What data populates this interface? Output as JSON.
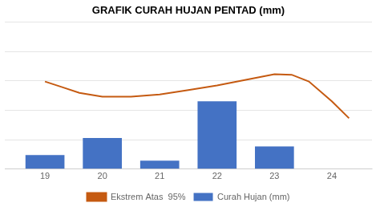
{
  "chart_data": {
    "type": "bar",
    "title": "GRAFIK CURAH HUJAN PENTAD (mm)",
    "series": [
      {
        "name": "Curah Hujan (mm)",
        "type": "bar",
        "color": "#4472C4",
        "x": [
          19,
          20,
          21,
          22,
          23,
          24
        ],
        "values": [
          25,
          55,
          15,
          120,
          40,
          0
        ]
      },
      {
        "name": "Ekstrem Atas  95%",
        "type": "line",
        "color": "#C55A11",
        "marker": "none",
        "line_style": "solid",
        "x": [
          19,
          19.3,
          19.6,
          20,
          20.5,
          21,
          21.5,
          22,
          22.5,
          23,
          23.3,
          23.6,
          24,
          24.3
        ],
        "values": [
          155,
          145,
          135,
          128,
          128,
          132,
          140,
          148,
          158,
          168,
          167,
          155,
          120,
          90
        ]
      }
    ],
    "xlim": [
      18.3,
      24.7
    ],
    "xticks": [
      19,
      20,
      21,
      22,
      23,
      24
    ],
    "ylim": [
      0,
      260
    ],
    "yticks": [
      0,
      52,
      104,
      156,
      208,
      260
    ],
    "grid": true,
    "legend": "bottom",
    "tick_labels": "x"
  }
}
